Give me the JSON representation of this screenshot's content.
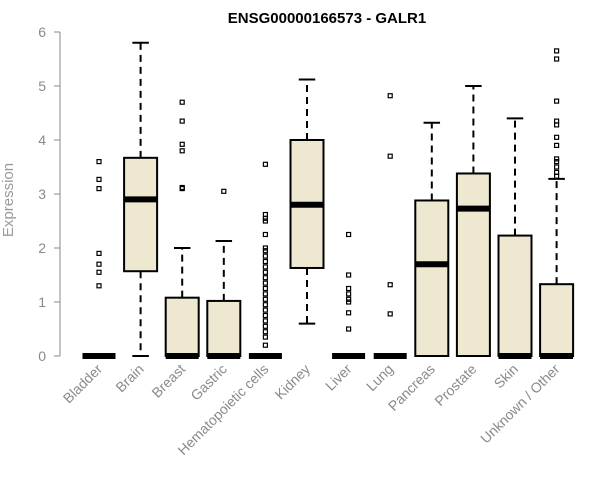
{
  "chart_data": {
    "type": "boxplot",
    "title": "ENSG00000166573 - GALR1",
    "xlabel": "",
    "ylabel": "Expression",
    "ylim": [
      0,
      6
    ],
    "yticks": [
      "0",
      "1",
      "2",
      "3",
      "4",
      "5",
      "6"
    ],
    "box_color": "#ede8cf",
    "categories": [
      "Bladder",
      "Brain",
      "Breast",
      "Gastric",
      "Hematopoietic cells",
      "Kidney",
      "Liver",
      "Lung",
      "Pancreas",
      "Prostate",
      "Skin",
      "Unknown / Other"
    ],
    "boxes": [
      {
        "name": "Bladder",
        "min": 0,
        "q1": 0,
        "median": 0,
        "q3": 0,
        "max": 0,
        "outliers": [
          1.3,
          1.55,
          1.7,
          1.9,
          3.1,
          3.27,
          3.6
        ]
      },
      {
        "name": "Brain",
        "min": 0,
        "q1": 1.57,
        "median": 2.9,
        "q3": 3.67,
        "max": 5.8,
        "outliers": []
      },
      {
        "name": "Breast",
        "min": 0,
        "q1": 0,
        "median": 0,
        "q3": 1.08,
        "max": 2.0,
        "outliers": [
          3.1,
          3.12,
          3.8,
          3.92,
          4.35,
          4.7
        ]
      },
      {
        "name": "Gastric",
        "min": 0,
        "q1": 0,
        "median": 0,
        "q3": 1.02,
        "max": 2.13,
        "outliers": [
          3.05
        ]
      },
      {
        "name": "Hematopoietic cells",
        "min": 0,
        "q1": 0,
        "median": 0,
        "q3": 0,
        "max": 0,
        "outliers": [
          0.2,
          0.35,
          0.45,
          0.55,
          0.65,
          0.75,
          0.85,
          0.95,
          1.05,
          1.15,
          1.25,
          1.35,
          1.45,
          1.55,
          1.65,
          1.75,
          1.85,
          1.95,
          2.0,
          2.25,
          2.5,
          2.55,
          2.62,
          3.55
        ]
      },
      {
        "name": "Kidney",
        "min": 0.6,
        "q1": 1.63,
        "median": 2.8,
        "q3": 4.0,
        "max": 5.12,
        "outliers": []
      },
      {
        "name": "Liver",
        "min": 0,
        "q1": 0,
        "median": 0,
        "q3": 0,
        "max": 0,
        "outliers": [
          0.5,
          0.8,
          1.0,
          1.05,
          1.15,
          1.25,
          1.5,
          2.25
        ]
      },
      {
        "name": "Lung",
        "min": 0,
        "q1": 0,
        "median": 0,
        "q3": 0,
        "max": 0,
        "outliers": [
          0.78,
          1.32,
          3.7,
          4.82
        ]
      },
      {
        "name": "Pancreas",
        "min": 0,
        "q1": 0,
        "median": 1.7,
        "q3": 2.88,
        "max": 4.32,
        "outliers": []
      },
      {
        "name": "Prostate",
        "min": 0,
        "q1": 0,
        "median": 2.73,
        "q3": 3.38,
        "max": 5.0,
        "outliers": []
      },
      {
        "name": "Skin",
        "min": 0,
        "q1": 0,
        "median": 0,
        "q3": 2.23,
        "max": 4.4,
        "outliers": []
      },
      {
        "name": "Unknown / Other",
        "min": 0,
        "q1": 0,
        "median": 0,
        "q3": 1.33,
        "max": 3.28,
        "outliers": [
          3.33,
          3.4,
          3.5,
          3.6,
          3.65,
          3.9,
          4.05,
          4.28,
          4.35,
          4.72,
          5.5,
          5.65
        ]
      }
    ]
  }
}
